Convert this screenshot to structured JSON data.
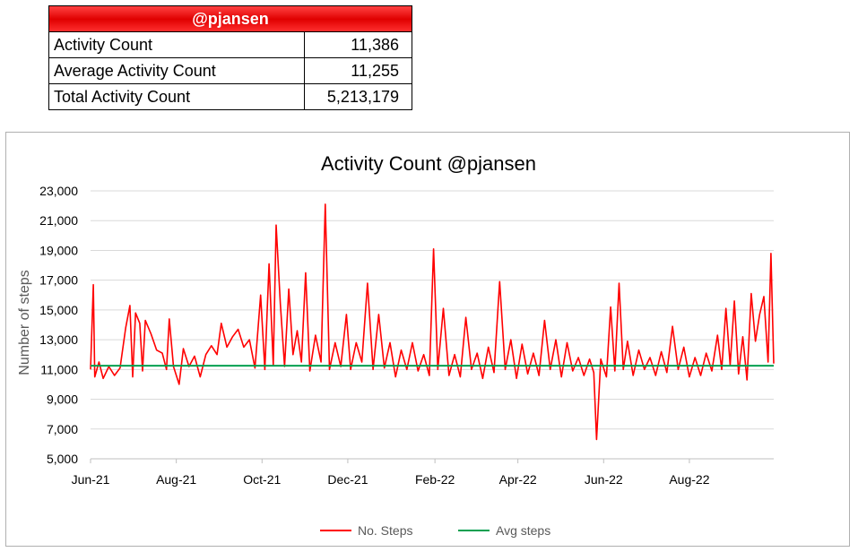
{
  "summary": {
    "header": "@pjansen",
    "rows": [
      {
        "label": "Activity Count",
        "value": "11,386"
      },
      {
        "label": "Average Activity Count",
        "value": "11,255"
      },
      {
        "label": "Total Activity Count",
        "value": "5,213,179"
      }
    ]
  },
  "colors": {
    "steps": "#ff0000",
    "avg": "#00a050",
    "header_bg": "#ee1111",
    "grid": "#d9d9d9"
  },
  "chart_data": {
    "type": "line",
    "title": "Activity Count @pjansen",
    "xlabel": "",
    "ylabel": "Number of steps",
    "ylim": [
      5000,
      23000
    ],
    "yticks": [
      5000,
      7000,
      9000,
      11000,
      13000,
      15000,
      17000,
      19000,
      21000,
      23000
    ],
    "ytick_labels": [
      "5,000",
      "7,000",
      "9,000",
      "11,000",
      "13,000",
      "15,000",
      "17,000",
      "19,000",
      "21,000",
      "23,000"
    ],
    "x_start": "2021-06-01",
    "x_end": "2022-09-30",
    "xticks": [
      "2021-06-01",
      "2021-08-01",
      "2021-10-01",
      "2021-12-01",
      "2022-02-01",
      "2022-04-01",
      "2022-06-01",
      "2022-08-01"
    ],
    "xtick_labels": [
      "Jun-21",
      "Aug-21",
      "Oct-21",
      "Dec-21",
      "Feb-22",
      "Apr-22",
      "Jun-22",
      "Aug-22"
    ],
    "grid": true,
    "legend_position": "bottom",
    "series": [
      {
        "name": "No. Steps",
        "color": "#ff0000",
        "points": [
          [
            "2021-06-01",
            11000
          ],
          [
            "2021-06-03",
            16700
          ],
          [
            "2021-06-04",
            10500
          ],
          [
            "2021-06-07",
            11500
          ],
          [
            "2021-06-10",
            10400
          ],
          [
            "2021-06-14",
            11200
          ],
          [
            "2021-06-18",
            10600
          ],
          [
            "2021-06-22",
            11100
          ],
          [
            "2021-06-26",
            13800
          ],
          [
            "2021-06-29",
            15300
          ],
          [
            "2021-07-01",
            10500
          ],
          [
            "2021-07-03",
            14800
          ],
          [
            "2021-07-06",
            14100
          ],
          [
            "2021-07-08",
            10900
          ],
          [
            "2021-07-10",
            14300
          ],
          [
            "2021-07-14",
            13400
          ],
          [
            "2021-07-18",
            12300
          ],
          [
            "2021-07-22",
            12100
          ],
          [
            "2021-07-25",
            11000
          ],
          [
            "2021-07-27",
            14400
          ],
          [
            "2021-07-30",
            11200
          ],
          [
            "2021-08-03",
            10000
          ],
          [
            "2021-08-06",
            12400
          ],
          [
            "2021-08-10",
            11200
          ],
          [
            "2021-08-14",
            11900
          ],
          [
            "2021-08-18",
            10500
          ],
          [
            "2021-08-22",
            12000
          ],
          [
            "2021-08-26",
            12600
          ],
          [
            "2021-08-30",
            12000
          ],
          [
            "2021-09-02",
            14100
          ],
          [
            "2021-09-06",
            12500
          ],
          [
            "2021-09-10",
            13200
          ],
          [
            "2021-09-14",
            13700
          ],
          [
            "2021-09-18",
            12500
          ],
          [
            "2021-09-22",
            13000
          ],
          [
            "2021-09-26",
            11100
          ],
          [
            "2021-09-30",
            16000
          ],
          [
            "2021-10-03",
            11000
          ],
          [
            "2021-10-06",
            18100
          ],
          [
            "2021-10-09",
            11300
          ],
          [
            "2021-10-11",
            20700
          ],
          [
            "2021-10-14",
            15400
          ],
          [
            "2021-10-17",
            11200
          ],
          [
            "2021-10-20",
            16400
          ],
          [
            "2021-10-23",
            12000
          ],
          [
            "2021-10-26",
            13600
          ],
          [
            "2021-10-29",
            11500
          ],
          [
            "2021-11-01",
            17500
          ],
          [
            "2021-11-04",
            10900
          ],
          [
            "2021-11-08",
            13300
          ],
          [
            "2021-11-12",
            11500
          ],
          [
            "2021-11-15",
            22100
          ],
          [
            "2021-11-18",
            11000
          ],
          [
            "2021-11-22",
            12800
          ],
          [
            "2021-11-26",
            11200
          ],
          [
            "2021-11-30",
            14700
          ],
          [
            "2021-12-03",
            11000
          ],
          [
            "2021-12-07",
            12800
          ],
          [
            "2021-12-11",
            11500
          ],
          [
            "2021-12-15",
            16800
          ],
          [
            "2021-12-19",
            11000
          ],
          [
            "2021-12-23",
            14700
          ],
          [
            "2021-12-27",
            11100
          ],
          [
            "2021-12-31",
            12800
          ],
          [
            "2022-01-04",
            10500
          ],
          [
            "2022-01-08",
            12300
          ],
          [
            "2022-01-12",
            11000
          ],
          [
            "2022-01-16",
            12800
          ],
          [
            "2022-01-20",
            10900
          ],
          [
            "2022-01-24",
            12000
          ],
          [
            "2022-01-28",
            10600
          ],
          [
            "2022-01-31",
            19100
          ],
          [
            "2022-02-03",
            11000
          ],
          [
            "2022-02-07",
            15100
          ],
          [
            "2022-02-11",
            10600
          ],
          [
            "2022-02-15",
            12000
          ],
          [
            "2022-02-19",
            10500
          ],
          [
            "2022-02-23",
            14500
          ],
          [
            "2022-02-27",
            11000
          ],
          [
            "2022-03-03",
            12100
          ],
          [
            "2022-03-07",
            10400
          ],
          [
            "2022-03-11",
            12500
          ],
          [
            "2022-03-15",
            10800
          ],
          [
            "2022-03-19",
            16900
          ],
          [
            "2022-03-23",
            11000
          ],
          [
            "2022-03-27",
            13000
          ],
          [
            "2022-03-31",
            10400
          ],
          [
            "2022-04-04",
            12700
          ],
          [
            "2022-04-08",
            10700
          ],
          [
            "2022-04-12",
            12100
          ],
          [
            "2022-04-16",
            10600
          ],
          [
            "2022-04-20",
            14300
          ],
          [
            "2022-04-24",
            11000
          ],
          [
            "2022-04-28",
            13000
          ],
          [
            "2022-05-02",
            10500
          ],
          [
            "2022-05-06",
            12800
          ],
          [
            "2022-05-10",
            10900
          ],
          [
            "2022-05-14",
            11800
          ],
          [
            "2022-05-18",
            10600
          ],
          [
            "2022-05-22",
            11700
          ],
          [
            "2022-05-25",
            10800
          ],
          [
            "2022-05-27",
            6300
          ],
          [
            "2022-05-30",
            11700
          ],
          [
            "2022-06-03",
            10500
          ],
          [
            "2022-06-06",
            15200
          ],
          [
            "2022-06-09",
            10900
          ],
          [
            "2022-06-12",
            16800
          ],
          [
            "2022-06-15",
            11000
          ],
          [
            "2022-06-18",
            12900
          ],
          [
            "2022-06-22",
            10600
          ],
          [
            "2022-06-26",
            12300
          ],
          [
            "2022-06-30",
            11000
          ],
          [
            "2022-07-04",
            11800
          ],
          [
            "2022-07-08",
            10600
          ],
          [
            "2022-07-12",
            12200
          ],
          [
            "2022-07-16",
            10800
          ],
          [
            "2022-07-20",
            13900
          ],
          [
            "2022-07-24",
            11000
          ],
          [
            "2022-07-28",
            12500
          ],
          [
            "2022-08-01",
            10500
          ],
          [
            "2022-08-05",
            11800
          ],
          [
            "2022-08-09",
            10600
          ],
          [
            "2022-08-13",
            12100
          ],
          [
            "2022-08-17",
            10900
          ],
          [
            "2022-08-21",
            13300
          ],
          [
            "2022-08-24",
            11000
          ],
          [
            "2022-08-27",
            15100
          ],
          [
            "2022-08-30",
            11300
          ],
          [
            "2022-09-02",
            15600
          ],
          [
            "2022-09-05",
            10700
          ],
          [
            "2022-09-08",
            13200
          ],
          [
            "2022-09-11",
            10300
          ],
          [
            "2022-09-14",
            16100
          ],
          [
            "2022-09-17",
            12900
          ],
          [
            "2022-09-20",
            14700
          ],
          [
            "2022-09-23",
            15900
          ],
          [
            "2022-09-26",
            11500
          ],
          [
            "2022-09-28",
            18800
          ],
          [
            "2022-09-30",
            11400
          ]
        ]
      },
      {
        "name": "Avg steps",
        "color": "#00a050",
        "constant": 11255
      }
    ]
  }
}
